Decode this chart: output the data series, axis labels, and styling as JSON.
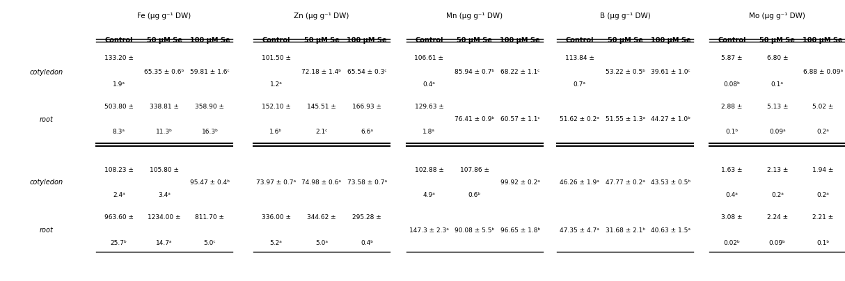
{
  "col_headers": [
    "Fe (µg g⁻¹ DW)",
    "Zn (µg g⁻¹ DW)",
    "Mn (µg g⁻¹ DW)",
    "B (µg g⁻¹ DW)",
    "Mo (µg g⁻¹ DW)"
  ],
  "sub_headers": [
    "Control",
    "50 µM Se",
    "100 µM Se"
  ],
  "section1": {
    "cotyledon": {
      "Fe": [
        "133.20 ±",
        "1.9ᵃ",
        "65.35 ± 0.6ᵇ",
        "59.81 ± 1.6ᶜ"
      ],
      "Zn": [
        "101.50 ±",
        "1.2ᵃ",
        "72.18 ± 1.4ᵇ",
        "65.54 ± 0.3ᶜ"
      ],
      "Mn": [
        "106.61 ±",
        "0.4ᵃ",
        "85.94 ± 0.7ᵇ",
        "68.22 ± 1.1ᶜ"
      ],
      "B": [
        "113.84 ±",
        "0.7ᵃ",
        "53.22 ± 0.5ᵇ",
        "39.61 ± 1.0ᶜ"
      ],
      "Mo": [
        "5.87 ±",
        "0.08ᵇ",
        "6.80 ±",
        "0.1ᵃ",
        "6.88 ± 0.09ᵃ"
      ]
    },
    "root": {
      "Fe": [
        "503.80 ±",
        "8.3ᵃ",
        "338.81 ±",
        "11.3ᵇ",
        "358.90 ±",
        "16.3ᵇ"
      ],
      "Zn": [
        "152.10 ±",
        "1.6ᵇ",
        "145.51 ±",
        "2.1ᶜ",
        "166.93 ±",
        "6.6ᵃ"
      ],
      "Mn": [
        "129.63 ±",
        "1.8ᵃ",
        "76.41 ± 0.9ᵇ",
        "60.57 ± 1.1ᶜ"
      ],
      "B": [
        "51.62 ± 0.2ᵃ",
        "51.55 ± 1.3ᵃ",
        "44.27 ± 1.0ᵇ"
      ],
      "Mo": [
        "2.88 ±",
        "0.1ᵇ",
        "5.13 ±",
        "0.09ᵃ",
        "5.02 ±",
        "0.2ᵃ"
      ]
    }
  },
  "section2": {
    "cotyledon": {
      "Fe": [
        "108.23 ±",
        "2.4ᵃ",
        "105.80 ±",
        "3.4ᵃ",
        "95.47 ± 0.4ᵇ"
      ],
      "Zn": [
        "73.97 ± 0.7ᵃ",
        "74.98 ± 0.6ᵃ",
        "73.58 ± 0.7ᵃ"
      ],
      "Mn": [
        "102.88 ±",
        "4.9ᵃ",
        "107.86 ±",
        "0.6ᵇ",
        "99.92 ± 0.2ᵃ"
      ],
      "B": [
        "46.26 ± 1.9ᵃ",
        "47.77 ± 0.2ᵃ",
        "43.53 ± 0.5ᵇ"
      ],
      "Mo": [
        "1.63 ±",
        "0.4ᵃ",
        "2.13 ±",
        "0.2ᵃ",
        "1.94 ±",
        "0.2ᵃ"
      ]
    },
    "root": {
      "Fe": [
        "963.60 ±",
        "25.7ᵇ",
        "1234.00 ±",
        "14.7ᵃ",
        "811.70 ±",
        "5.0ᶜ"
      ],
      "Zn": [
        "336.00 ±",
        "5.2ᵃ",
        "344.62 ±",
        "5.0ᵃ",
        "295.28 ±",
        "0.4ᵇ"
      ],
      "Mn": [
        "147.3 ± 2.3ᵃ",
        "90.08 ± 5.5ᵇ",
        "96.65 ± 1.8ᵇ"
      ],
      "B": [
        "47.35 ± 4.7ᵃ",
        "31.68 ± 2.1ᵇ",
        "40.63 ± 1.5ᵃ"
      ],
      "Mo": [
        "3.08 ±",
        "0.02ᵇ",
        "2.24 ±",
        "0.09ᵇ",
        "2.21 ±",
        "0.1ᵇ"
      ]
    }
  }
}
